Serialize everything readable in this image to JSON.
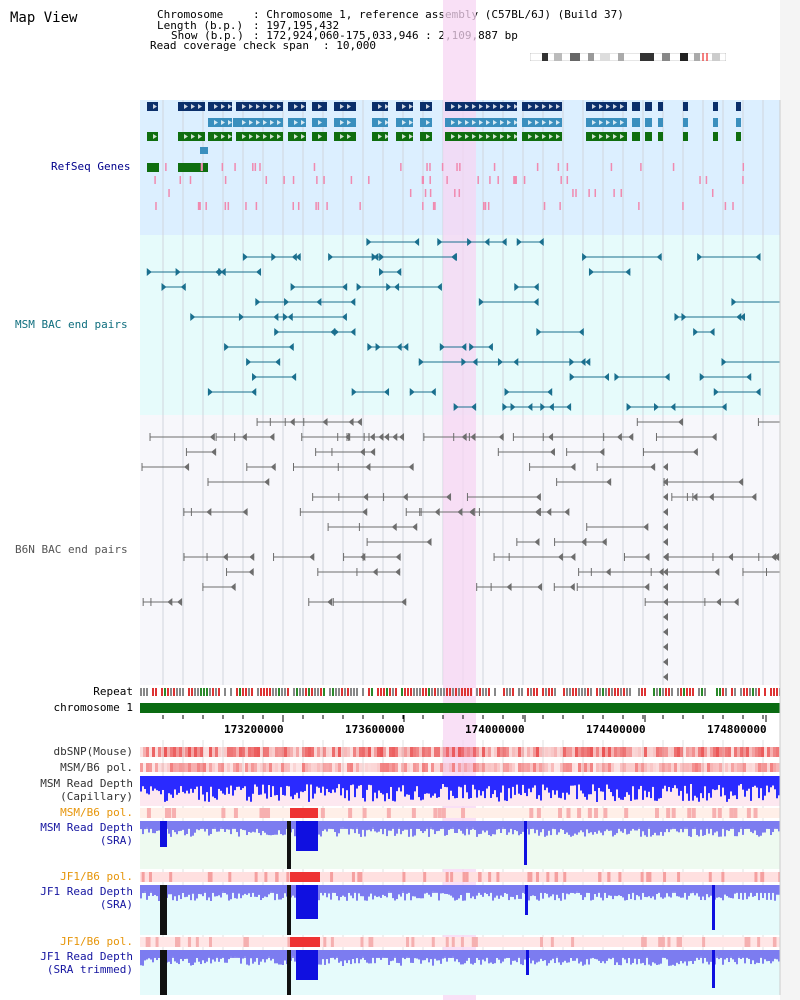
{
  "title": "Map View",
  "info": {
    "chromosome_key": "Chromosome",
    "chromosome_val": ": Chromosome 1, reference assembly (C57BL/6J) (Build 37)",
    "length_key": "Length (b.p.)",
    "length_val": ": 197,195,432",
    "show_key": "Show (b.p.)",
    "show_val": ": 172,924,060-175,033,946 : 2,109,887 bp",
    "coverage_key": "Read coverage check span",
    "coverage_val": ": 10,000"
  },
  "tracks": {
    "refseq": "RefSeq Genes",
    "msm_bac": "MSM BAC end pairs",
    "b6n_bac": "B6N BAC end pairs",
    "repeat": "Repeat",
    "chromosome": "chromosome 1",
    "dbsnp": "dbSNP(Mouse)",
    "msm_b6_pol": "MSM/B6 pol.",
    "msm_depth_cap_1": "MSM Read Depth",
    "msm_depth_cap_2": "(Capillary)",
    "msm_b6_pol_2": "MSM/B6 pol.",
    "msm_depth_sra_1": "MSM Read Depth",
    "msm_depth_sra_2": "(SRA)",
    "jf1_b6_pol": "JF1/B6 pol.",
    "jf1_depth_sra_1": "JF1 Read Depth",
    "jf1_depth_sra_2": "(SRA)",
    "jf1_b6_pol_2": "JF1/B6 pol.",
    "jf1_depth_trim_1": "JF1 Read Depth",
    "jf1_depth_trim_2": "(SRA trimmed)"
  },
  "axis": {
    "ticks": [
      "173200000",
      "173600000",
      "174000000",
      "174400000",
      "174800000"
    ]
  },
  "colors": {
    "refseq_bg": "#dcefff",
    "msm_bg": "#e6fbfb",
    "b6n_bg": "#f7f7fb",
    "highlight": "#f7d6f3",
    "gene_navy": "#0b2f6b",
    "gene_teal": "#3a8fbe",
    "gene_green": "#0f6e0f",
    "msm_pair": "#1a6f8e",
    "b6n_pair": "#6d6d6d",
    "chrom_bar": "#0a6b12",
    "depth_blue": "#2a2aff",
    "pol_red": "#e33"
  }
}
